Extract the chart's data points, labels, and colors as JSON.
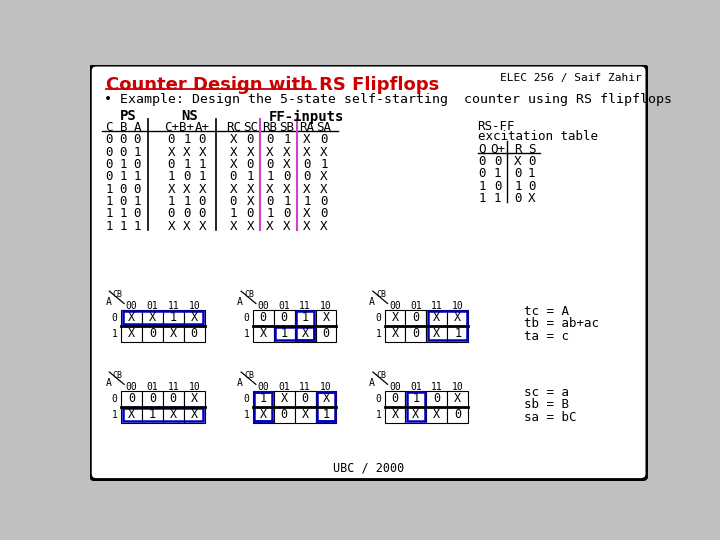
{
  "title": "Counter Design with RS Flipflops",
  "header_right": "ELEC 256 / Saif Zahir",
  "subtitle": "• Example: Design the 5-state self-starting  counter using RS flipflops",
  "bg_color": "#ffffff",
  "border_color": "#000000",
  "title_color": "#cc0000",
  "ps_labels": [
    "C",
    "B",
    "A"
  ],
  "ns_labels": [
    "C+",
    "B+",
    "A+"
  ],
  "ff_labels": [
    "RC",
    "SC",
    "RB",
    "SB",
    "RA",
    "SA"
  ],
  "table_rows": [
    [
      "0",
      "0",
      "0",
      "0",
      "1",
      "0",
      "X",
      "0",
      "0",
      "1",
      "X",
      "0"
    ],
    [
      "0",
      "0",
      "1",
      "X",
      "X",
      "X",
      "X",
      "X",
      "X",
      "X",
      "X",
      "X"
    ],
    [
      "0",
      "1",
      "0",
      "0",
      "1",
      "1",
      "X",
      "0",
      "0",
      "X",
      "0",
      "1"
    ],
    [
      "0",
      "1",
      "1",
      "1",
      "0",
      "1",
      "0",
      "1",
      "1",
      "0",
      "0",
      "X"
    ],
    [
      "1",
      "0",
      "0",
      "X",
      "X",
      "X",
      "X",
      "X",
      "X",
      "X",
      "X",
      "X"
    ],
    [
      "1",
      "0",
      "1",
      "1",
      "1",
      "0",
      "0",
      "X",
      "0",
      "1",
      "1",
      "0"
    ],
    [
      "1",
      "1",
      "0",
      "0",
      "0",
      "0",
      "1",
      "0",
      "1",
      "0",
      "X",
      "0"
    ],
    [
      "1",
      "1",
      "1",
      "X",
      "X",
      "X",
      "X",
      "X",
      "X",
      "X",
      "X",
      "X"
    ]
  ],
  "rsff_rows": [
    [
      "0",
      "0",
      "X",
      "0"
    ],
    [
      "0",
      "1",
      "0",
      "1"
    ],
    [
      "1",
      "0",
      "1",
      "0"
    ],
    [
      "1",
      "1",
      "0",
      "X"
    ]
  ],
  "kmaps": [
    {
      "label": "tc",
      "cells": [
        [
          "X",
          "X",
          "1",
          "X"
        ],
        [
          "X",
          "0",
          "X",
          "0"
        ]
      ],
      "boxes": [
        {
          "type": "full_row0"
        }
      ]
    },
    {
      "label": "tb",
      "cells": [
        [
          "0",
          "0",
          "1",
          "X"
        ],
        [
          "X",
          "1",
          "X",
          "0"
        ]
      ],
      "boxes": [
        {
          "type": "col2_both"
        },
        {
          "type": "row1_col12"
        }
      ]
    },
    {
      "label": "ta",
      "cells": [
        [
          "X",
          "0",
          "X",
          "X"
        ],
        [
          "X",
          "0",
          "X",
          "1"
        ]
      ],
      "boxes": [
        {
          "type": "right_2cols"
        }
      ]
    },
    {
      "label": "sc",
      "cells": [
        [
          "0",
          "0",
          "0",
          "X"
        ],
        [
          "X",
          "1",
          "X",
          "X"
        ]
      ],
      "boxes": [
        {
          "type": "full_row1"
        }
      ]
    },
    {
      "label": "sb",
      "cells": [
        [
          "1",
          "X",
          "0",
          "X"
        ],
        [
          "X",
          "0",
          "X",
          "1"
        ]
      ],
      "boxes": [
        {
          "type": "wrap_col0_col3"
        }
      ]
    },
    {
      "label": "sa",
      "cells": [
        [
          "0",
          "1",
          "0",
          "X"
        ],
        [
          "X",
          "X",
          "X",
          "0"
        ]
      ],
      "boxes": [
        {
          "type": "col1_both"
        }
      ]
    }
  ],
  "equations_top": [
    "tc = A",
    "tb = ab+ac",
    "ta = c"
  ],
  "equations_bot": [
    "sc = a",
    "sb = B",
    "sa = bC"
  ],
  "footer": "UBC / 2000"
}
